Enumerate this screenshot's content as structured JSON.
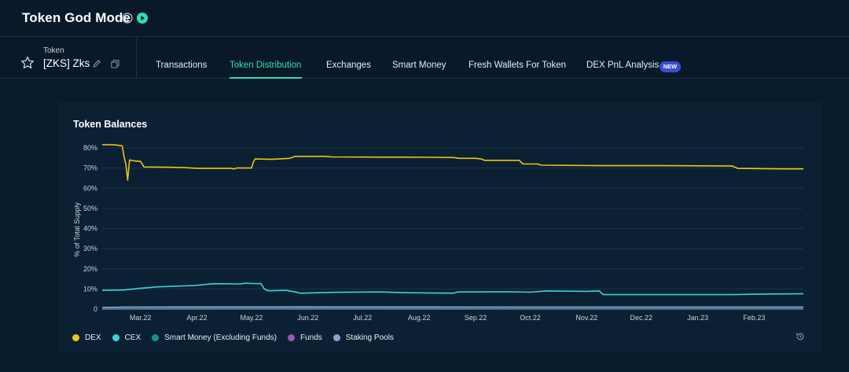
{
  "header": {
    "title": "Token God Mode",
    "info_icon": "info-icon",
    "play_icon": "play-icon"
  },
  "token": {
    "caption": "Token",
    "name": "[ZKS] Zks",
    "star_icon": "star-icon",
    "edit_icon": "pencil-icon",
    "copy_icon": "copy-icon"
  },
  "tabs": [
    {
      "label": "Transactions",
      "active": false
    },
    {
      "label": "Token Distribution",
      "active": true
    },
    {
      "label": "Exchanges",
      "active": false
    },
    {
      "label": "Smart Money",
      "active": false
    },
    {
      "label": "Fresh Wallets For Token",
      "active": false
    },
    {
      "label": "DEX PnL Analysis",
      "active": false,
      "badge": "NEW"
    }
  ],
  "colors": {
    "accent": "#2fe0b0",
    "dex": "#f0c21a",
    "cex": "#3ed2d6",
    "smart_money": "#1f8f8a",
    "funds": "#9b59b6",
    "staking_pools": "#8fa3c8",
    "badge": "#3a4fd0"
  },
  "card": {
    "reset_icon": "history-icon"
  },
  "chart_data": {
    "type": "line",
    "title": "Token Balances",
    "ylabel": "% of Total Supply",
    "xlabel": "",
    "ylim": [
      0,
      80
    ],
    "yticks": [
      0,
      10,
      20,
      30,
      40,
      50,
      60,
      70,
      80
    ],
    "ytick_labels": [
      "0",
      "10%",
      "20%",
      "30%",
      "40%",
      "50%",
      "60%",
      "70%",
      "80%"
    ],
    "xlim": [
      "2022-02-08",
      "2023-02-28"
    ],
    "xticks": [
      "2022-03-01",
      "2022-04-01",
      "2022-05-01",
      "2022-06-01",
      "2022-07-01",
      "2022-08-01",
      "2022-09-01",
      "2022-10-01",
      "2022-11-01",
      "2022-12-01",
      "2023-01-01",
      "2023-02-01"
    ],
    "xtick_labels": [
      "Mar.22",
      "Apr.22",
      "May.22",
      "Jun.22",
      "Jul.22",
      "Aug.22",
      "Sep.22",
      "Oct.22",
      "Nov.22",
      "Dec.22",
      "Jan.23",
      "Feb.23"
    ],
    "grid": true,
    "legend_position": "bottom-left",
    "series": [
      {
        "name": "DEX",
        "color": "#f0c21a",
        "points": [
          [
            "2022-02-08",
            81.6
          ],
          [
            "2022-02-15",
            81.5
          ],
          [
            "2022-02-19",
            81.0
          ],
          [
            "2022-02-20",
            75.5
          ],
          [
            "2022-02-21",
            72.0
          ],
          [
            "2022-02-22",
            64.0
          ],
          [
            "2022-02-23",
            74.0
          ],
          [
            "2022-02-26",
            73.5
          ],
          [
            "2022-03-01",
            73.3
          ],
          [
            "2022-03-03",
            70.5
          ],
          [
            "2022-03-15",
            70.4
          ],
          [
            "2022-03-25",
            70.2
          ],
          [
            "2022-04-01",
            69.8
          ],
          [
            "2022-04-20",
            69.8
          ],
          [
            "2022-04-21",
            69.5
          ],
          [
            "2022-04-23",
            70.0
          ],
          [
            "2022-05-01",
            70.0
          ],
          [
            "2022-05-02",
            73.0
          ],
          [
            "2022-05-03",
            74.5
          ],
          [
            "2022-05-12",
            74.3
          ],
          [
            "2022-05-22",
            74.8
          ],
          [
            "2022-05-25",
            75.8
          ],
          [
            "2022-06-10",
            75.8
          ],
          [
            "2022-06-14",
            75.5
          ],
          [
            "2022-07-15",
            75.4
          ],
          [
            "2022-08-10",
            75.3
          ],
          [
            "2022-08-20",
            75.2
          ],
          [
            "2022-08-23",
            74.8
          ],
          [
            "2022-09-01",
            74.8
          ],
          [
            "2022-09-04",
            74.5
          ],
          [
            "2022-09-06",
            73.8
          ],
          [
            "2022-09-25",
            73.8
          ],
          [
            "2022-09-27",
            72.0
          ],
          [
            "2022-10-05",
            72.0
          ],
          [
            "2022-10-07",
            71.4
          ],
          [
            "2022-11-10",
            71.2
          ],
          [
            "2022-12-15",
            71.2
          ],
          [
            "2023-01-20",
            71.0
          ],
          [
            "2023-01-23",
            69.8
          ],
          [
            "2023-02-15",
            69.6
          ],
          [
            "2023-02-28",
            69.6
          ]
        ]
      },
      {
        "name": "CEX",
        "color": "#3ed2d6",
        "points": [
          [
            "2022-02-08",
            9.3
          ],
          [
            "2022-02-20",
            9.5
          ],
          [
            "2022-03-01",
            10.3
          ],
          [
            "2022-03-10",
            11.0
          ],
          [
            "2022-03-25",
            11.5
          ],
          [
            "2022-04-01",
            11.8
          ],
          [
            "2022-04-10",
            12.6
          ],
          [
            "2022-04-25",
            12.5
          ],
          [
            "2022-04-27",
            12.8
          ],
          [
            "2022-05-05",
            12.6
          ],
          [
            "2022-05-06",
            12.8
          ],
          [
            "2022-05-08",
            10.0
          ],
          [
            "2022-05-10",
            9.1
          ],
          [
            "2022-05-20",
            9.3
          ],
          [
            "2022-05-25",
            8.5
          ],
          [
            "2022-05-28",
            7.9
          ],
          [
            "2022-06-15",
            8.3
          ],
          [
            "2022-07-10",
            8.5
          ],
          [
            "2022-07-25",
            8.1
          ],
          [
            "2022-08-20",
            7.9
          ],
          [
            "2022-08-22",
            8.5
          ],
          [
            "2022-09-20",
            8.6
          ],
          [
            "2022-10-01",
            8.4
          ],
          [
            "2022-10-10",
            9.0
          ],
          [
            "2022-11-01",
            8.8
          ],
          [
            "2022-11-08",
            9.0
          ],
          [
            "2022-11-10",
            7.2
          ],
          [
            "2022-12-20",
            7.2
          ],
          [
            "2023-01-20",
            7.2
          ],
          [
            "2023-02-10",
            7.5
          ],
          [
            "2023-02-28",
            7.6
          ]
        ]
      },
      {
        "name": "Smart Money (Excluding Funds)",
        "color": "#1f8f8a",
        "points": [
          [
            "2022-02-08",
            0.4
          ],
          [
            "2022-06-01",
            0.5
          ],
          [
            "2022-10-01",
            0.4
          ],
          [
            "2023-02-28",
            0.4
          ]
        ]
      },
      {
        "name": "Funds",
        "color": "#9b59b6",
        "points": [
          [
            "2022-02-08",
            0.0
          ],
          [
            "2023-02-28",
            0.0
          ]
        ]
      },
      {
        "name": "Staking Pools",
        "color": "#8fa3c8",
        "points": [
          [
            "2022-02-08",
            0.8
          ],
          [
            "2022-02-20",
            1.0
          ],
          [
            "2022-06-01",
            1.1
          ],
          [
            "2022-10-01",
            1.0
          ],
          [
            "2023-02-28",
            1.0
          ]
        ]
      }
    ]
  }
}
